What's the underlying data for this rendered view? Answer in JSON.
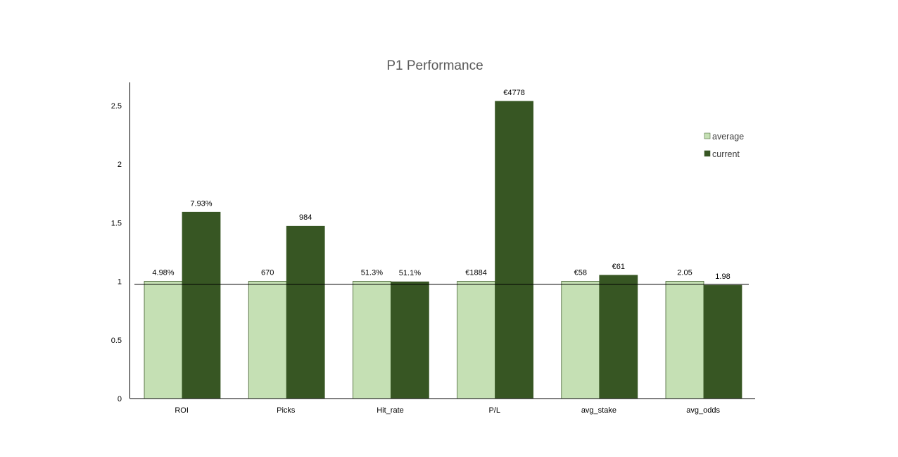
{
  "chart_data": {
    "type": "bar",
    "title": "P1 Performance",
    "xlabel": "",
    "ylabel": "",
    "ylim": [
      0,
      2.7
    ],
    "yticks": [
      0,
      0.5,
      1,
      1.5,
      2,
      2.5
    ],
    "ytick_labels": [
      "0",
      "0.5",
      "1",
      "1.5",
      "2",
      "2.5"
    ],
    "grid": false,
    "reference_line": 0.975,
    "legend_position": "right",
    "categories": [
      "ROI",
      "Picks",
      "Hit_rate",
      "P/L",
      "avg_stake",
      "avg_odds"
    ],
    "series": [
      {
        "name": "average",
        "color": "#c5e0b4",
        "values": [
          1,
          1,
          1,
          1,
          1,
          1
        ],
        "labels": [
          "4.98%",
          "670",
          "51.3%",
          "€1884",
          "€58",
          "2.05"
        ]
      },
      {
        "name": "current",
        "color": "#375623",
        "values": [
          1.59,
          1.47,
          0.996,
          2.536,
          1.052,
          0.966
        ],
        "labels": [
          "7.93%",
          "984",
          "51.1%",
          "€4778",
          "€61",
          "1.98"
        ]
      }
    ]
  }
}
